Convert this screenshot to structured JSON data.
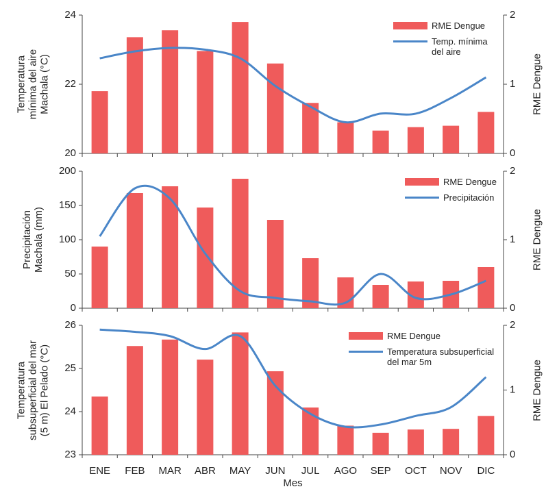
{
  "chart_data": [
    {
      "type": "combo",
      "y_label": "Temperatura mínima del aire Machala (°C)",
      "y2_label": "RME Dengue",
      "ylim": [
        20,
        24
      ],
      "yticks": [
        20,
        22,
        24
      ],
      "y2lim": [
        0,
        2
      ],
      "y2ticks": [
        0,
        1,
        2
      ],
      "legend": "upper right",
      "series": [
        {
          "name": "RME Dengue",
          "type": "bar",
          "axis": "y2",
          "color": "#ef5b5b",
          "values": [
            0.9,
            1.68,
            1.78,
            1.48,
            1.9,
            1.3,
            0.73,
            0.45,
            0.33,
            0.38,
            0.4,
            0.6
          ]
        },
        {
          "name": "Temp. mínima del aire",
          "type": "line",
          "color": "#4a86c8",
          "values": [
            22.75,
            22.95,
            23.05,
            23.0,
            22.75,
            21.95,
            21.35,
            20.9,
            21.15,
            21.15,
            21.6,
            22.2
          ]
        }
      ]
    },
    {
      "type": "combo",
      "y_label": "Precipitación Machala (mm)",
      "y2_label": "RME Dengue",
      "ylim": [
        0,
        200
      ],
      "yticks": [
        0,
        50,
        100,
        150,
        200
      ],
      "y2lim": [
        0,
        2
      ],
      "y2ticks": [
        0,
        1,
        2
      ],
      "legend": "upper right",
      "series": [
        {
          "name": "RME Dengue",
          "type": "bar",
          "axis": "y2",
          "color": "#ef5b5b",
          "values": [
            0.9,
            1.68,
            1.78,
            1.47,
            1.89,
            1.29,
            0.73,
            0.45,
            0.34,
            0.39,
            0.4,
            0.6
          ]
        },
        {
          "name": "Precipitación",
          "type": "line",
          "color": "#4a86c8",
          "values": [
            105,
            175,
            160,
            80,
            25,
            15,
            10,
            8,
            50,
            15,
            20,
            40
          ]
        }
      ]
    },
    {
      "type": "combo",
      "y_label": "Temperatura subsuperficial del mar (5 m) El Pelado (°C)",
      "y2_label": "RME Dengue",
      "x_label": "Mes",
      "categories": [
        "ENE",
        "FEB",
        "MAR",
        "ABR",
        "MAY",
        "JUN",
        "JUL",
        "AGO",
        "SEP",
        "OCT",
        "NOV",
        "DIC"
      ],
      "ylim": [
        23,
        26
      ],
      "yticks": [
        23,
        24,
        25,
        26
      ],
      "y2lim": [
        0,
        2
      ],
      "y2ticks": [
        0,
        1,
        2
      ],
      "legend": "upper right",
      "series": [
        {
          "name": "RME Dengue",
          "type": "bar",
          "axis": "y2",
          "color": "#ef5b5b",
          "values": [
            0.9,
            1.68,
            1.78,
            1.47,
            1.89,
            1.29,
            0.73,
            0.45,
            0.34,
            0.39,
            0.4,
            0.6
          ]
        },
        {
          "name": "Temperatura subsuperficial del mar 5m",
          "type": "line",
          "color": "#4a86c8",
          "values": [
            25.9,
            25.85,
            25.75,
            25.45,
            25.75,
            24.6,
            23.95,
            23.65,
            23.7,
            23.9,
            24.1,
            24.8
          ]
        }
      ]
    }
  ]
}
